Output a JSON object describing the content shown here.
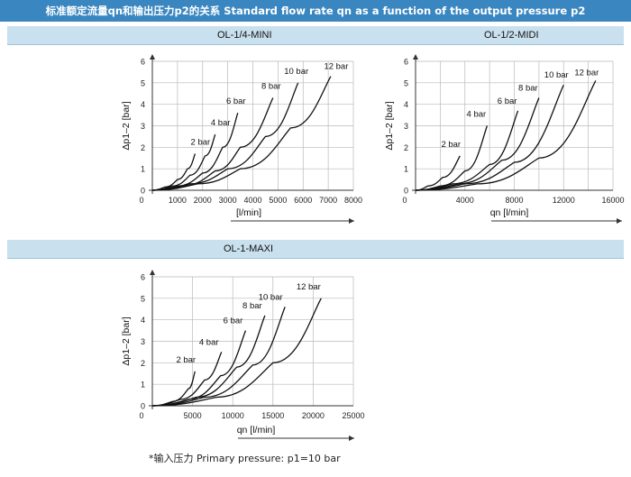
{
  "header": {
    "title": "标准额定流量qn和输出压力p2的关系 Standard flow rate qn as a function of the output pressure p2"
  },
  "footnote": "*输入压力 Primary pressure:  p1=10 bar",
  "colors": {
    "header_bg": "#3a86c0",
    "band_bg": "#c9e0ee",
    "curve": "#111111",
    "grid": "#b9b9b9"
  },
  "chart_data": [
    {
      "type": "line",
      "title": "OL-1/4-MINI",
      "xlabel": "[l/min]",
      "ylabel": "Δp1–2 [bar]",
      "xlim": [
        0,
        8000
      ],
      "ylim": [
        0,
        6
      ],
      "xticks": [
        0,
        1000,
        2000,
        3000,
        4000,
        5000,
        6000,
        7000,
        8000
      ],
      "xtick_labels": [
        "0",
        "1000",
        "2000",
        "3000",
        "4000",
        "5000",
        "6000",
        "7000",
        "8000"
      ],
      "yticks": [
        0,
        1,
        2,
        3,
        4,
        5,
        6
      ],
      "grid": true,
      "series": [
        {
          "name": "2 bar",
          "x": [
            0,
            500,
            1000,
            1400,
            1700
          ],
          "y": [
            0,
            0.15,
            0.5,
            1.0,
            1.7
          ]
        },
        {
          "name": "4 bar",
          "x": [
            0,
            800,
            1500,
            2100,
            2500
          ],
          "y": [
            0,
            0.2,
            0.7,
            1.6,
            2.6
          ]
        },
        {
          "name": "6 bar",
          "x": [
            0,
            1000,
            2000,
            2800,
            3400
          ],
          "y": [
            0,
            0.2,
            0.8,
            2.0,
            3.6
          ]
        },
        {
          "name": "8 bar",
          "x": [
            0,
            1200,
            2500,
            3500,
            4800
          ],
          "y": [
            0,
            0.2,
            0.9,
            2.0,
            4.3
          ]
        },
        {
          "name": "10 bar",
          "x": [
            0,
            1500,
            3000,
            4500,
            5800
          ],
          "y": [
            0,
            0.3,
            1.0,
            2.5,
            5.0
          ]
        },
        {
          "name": "12 bar",
          "x": [
            0,
            1800,
            3500,
            5500,
            7100
          ],
          "y": [
            0,
            0.3,
            1.0,
            2.9,
            5.3
          ]
        }
      ]
    },
    {
      "type": "line",
      "title": "OL-1/2-MIDI",
      "xlabel": "qn [l/min]",
      "ylabel": "Δp1–2 [bar]",
      "xlim": [
        0,
        16000
      ],
      "ylim": [
        0,
        6
      ],
      "xticks": [
        0,
        2000,
        4000,
        6000,
        8000,
        10000,
        12000,
        14000,
        16000
      ],
      "xtick_labels": [
        "0",
        "",
        "4000",
        "",
        "8000",
        "",
        "12000",
        "",
        "16000"
      ],
      "yticks": [
        0,
        1,
        2,
        3,
        4,
        5,
        6
      ],
      "grid": true,
      "series": [
        {
          "name": "2 bar",
          "x": [
            0,
            1000,
            2200,
            3600
          ],
          "y": [
            0,
            0.2,
            0.6,
            1.6
          ]
        },
        {
          "name": "4 bar",
          "x": [
            0,
            2000,
            4000,
            5800
          ],
          "y": [
            0,
            0.2,
            0.9,
            3.0
          ]
        },
        {
          "name": "6 bar",
          "x": [
            0,
            3000,
            6000,
            8300
          ],
          "y": [
            0,
            0.3,
            1.2,
            3.7
          ]
        },
        {
          "name": "8 bar",
          "x": [
            0,
            3500,
            7000,
            10000
          ],
          "y": [
            0,
            0.3,
            1.4,
            4.3
          ]
        },
        {
          "name": "10 bar",
          "x": [
            0,
            4000,
            8000,
            12000
          ],
          "y": [
            0,
            0.3,
            1.3,
            4.9
          ]
        },
        {
          "name": "12 bar",
          "x": [
            0,
            5000,
            10000,
            14600
          ],
          "y": [
            0,
            0.3,
            1.5,
            5.1
          ]
        }
      ]
    },
    {
      "type": "line",
      "title": "OL-1-MAXI",
      "xlabel": "qn [l/min]",
      "ylabel": "Δp1–2 [bar]",
      "xlim": [
        0,
        25000
      ],
      "ylim": [
        0,
        6
      ],
      "xticks": [
        0,
        5000,
        10000,
        15000,
        20000,
        25000
      ],
      "xtick_labels": [
        "0",
        "5000",
        "10000",
        "15000",
        "20000",
        "25000"
      ],
      "yticks": [
        0,
        1,
        2,
        3,
        4,
        5,
        6
      ],
      "grid": true,
      "series": [
        {
          "name": "2 bar",
          "x": [
            0,
            2500,
            4500,
            5300
          ],
          "y": [
            0,
            0.2,
            0.8,
            1.6
          ]
        },
        {
          "name": "4 bar",
          "x": [
            0,
            3500,
            6500,
            8600
          ],
          "y": [
            0,
            0.3,
            1.2,
            2.5
          ]
        },
        {
          "name": "6 bar",
          "x": [
            0,
            4500,
            8500,
            11600
          ],
          "y": [
            0,
            0.3,
            1.4,
            3.5
          ]
        },
        {
          "name": "8 bar",
          "x": [
            0,
            5500,
            10500,
            14000
          ],
          "y": [
            0,
            0.4,
            1.8,
            4.2
          ]
        },
        {
          "name": "10 bar",
          "x": [
            0,
            6500,
            12500,
            16500
          ],
          "y": [
            0,
            0.4,
            1.9,
            4.6
          ]
        },
        {
          "name": "12 bar",
          "x": [
            0,
            8000,
            15000,
            21000
          ],
          "y": [
            0,
            0.4,
            2.0,
            5.0
          ]
        }
      ]
    }
  ]
}
